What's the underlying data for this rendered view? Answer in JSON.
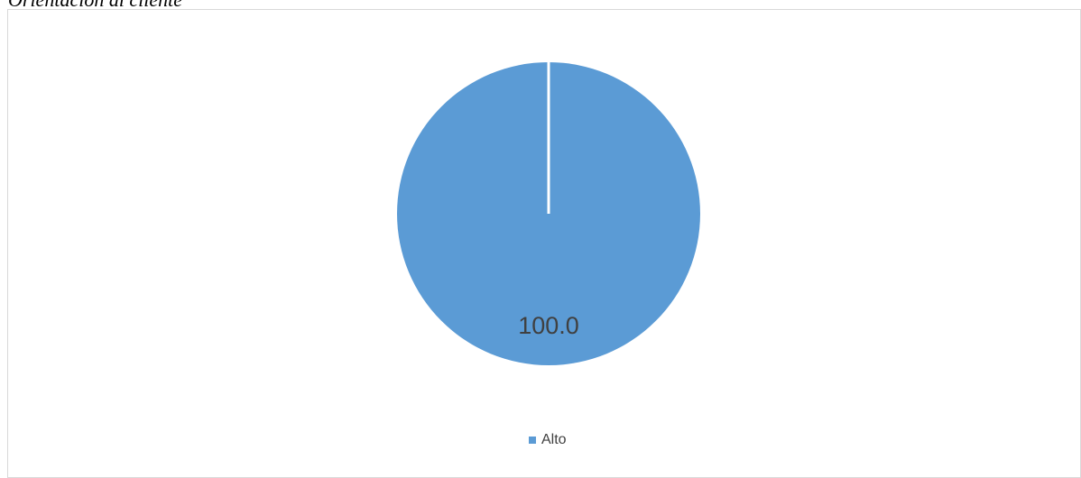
{
  "caption": "Orientación al cliente",
  "chart_data": {
    "type": "pie",
    "title": "",
    "categories": [
      "Alto"
    ],
    "values": [
      100.0
    ],
    "data_labels": [
      "100.0"
    ],
    "colors": [
      "#5b9bd5"
    ],
    "legend_position": "bottom",
    "slice_border_color": "#ffffff"
  }
}
